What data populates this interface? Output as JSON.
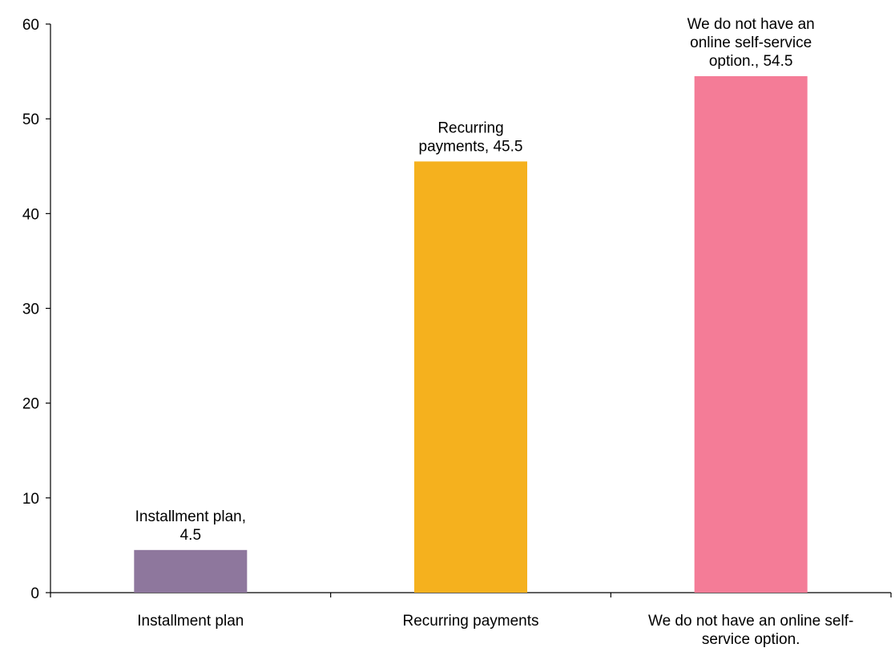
{
  "chart_data": {
    "type": "bar",
    "title": "",
    "xlabel": "",
    "ylabel": "",
    "ylim": [
      0,
      60
    ],
    "yticks": [
      0,
      10,
      20,
      30,
      40,
      50,
      60
    ],
    "grid": false,
    "legend": "none",
    "categories": [
      "Installment plan",
      "Recurring payments",
      "We do not have an online self-service option."
    ],
    "category_label_lines": [
      [
        "Installment plan"
      ],
      [
        "Recurring payments"
      ],
      [
        "We do not have an online self-",
        "service option."
      ]
    ],
    "values": [
      4.5,
      45.5,
      54.5
    ],
    "data_label_lines": [
      [
        "Installment plan,",
        "4.5"
      ],
      [
        "Recurring",
        "payments, 45.5"
      ],
      [
        "We do not have an",
        "online self-service",
        "option., 54.5"
      ]
    ],
    "colors": [
      "#8e779d",
      "#f5b11e",
      "#f47c97"
    ]
  }
}
